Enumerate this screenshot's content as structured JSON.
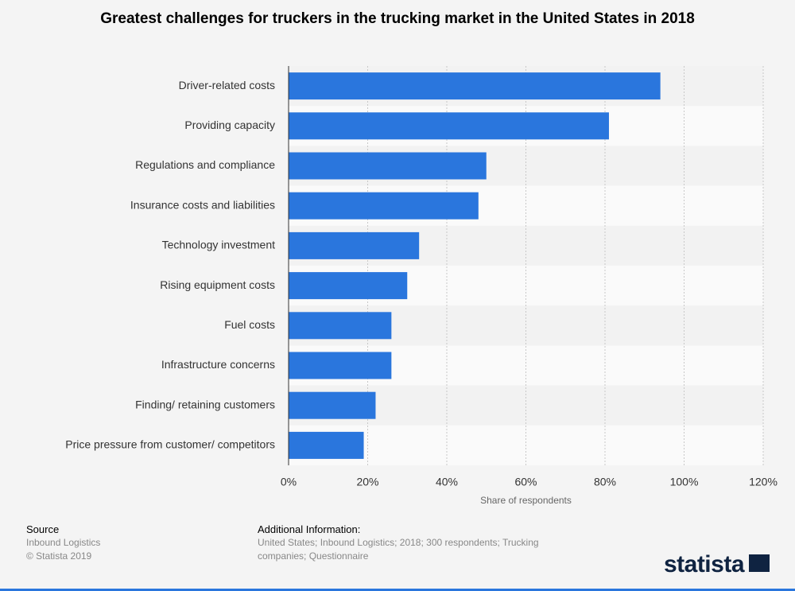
{
  "chart_data": {
    "type": "barh",
    "title": "Greatest challenges for truckers in the trucking market in the United States in 2018",
    "categories": [
      "Driver-related costs",
      "Providing capacity",
      "Regulations and compliance",
      "Insurance costs and liabilities",
      "Technology investment",
      "Rising equipment costs",
      "Fuel costs",
      "Infrastructure concerns",
      "Finding/ retaining customers",
      "Price pressure from customer/ competitors"
    ],
    "values": [
      94,
      81,
      50,
      48,
      33,
      30,
      26,
      26,
      22,
      19
    ],
    "color": "#2a76dd",
    "xlabel": "Share of respondents",
    "xlim": [
      0,
      120
    ],
    "xticks": [
      {
        "value": 0,
        "label": "0%"
      },
      {
        "value": 20,
        "label": "20%"
      },
      {
        "value": 40,
        "label": "40%"
      },
      {
        "value": 60,
        "label": "60%"
      },
      {
        "value": 80,
        "label": "80%"
      },
      {
        "value": 100,
        "label": "100%"
      },
      {
        "value": 120,
        "label": "120%"
      }
    ],
    "grid": true
  },
  "source": {
    "heading": "Source",
    "lines": [
      "Inbound Logistics",
      "© Statista 2019"
    ]
  },
  "additional_information": {
    "heading": "Additional Information:",
    "text": "United States; Inbound Logistics; 2018; 300 respondents; Trucking companies; Questionnaire"
  },
  "logo": "statista"
}
